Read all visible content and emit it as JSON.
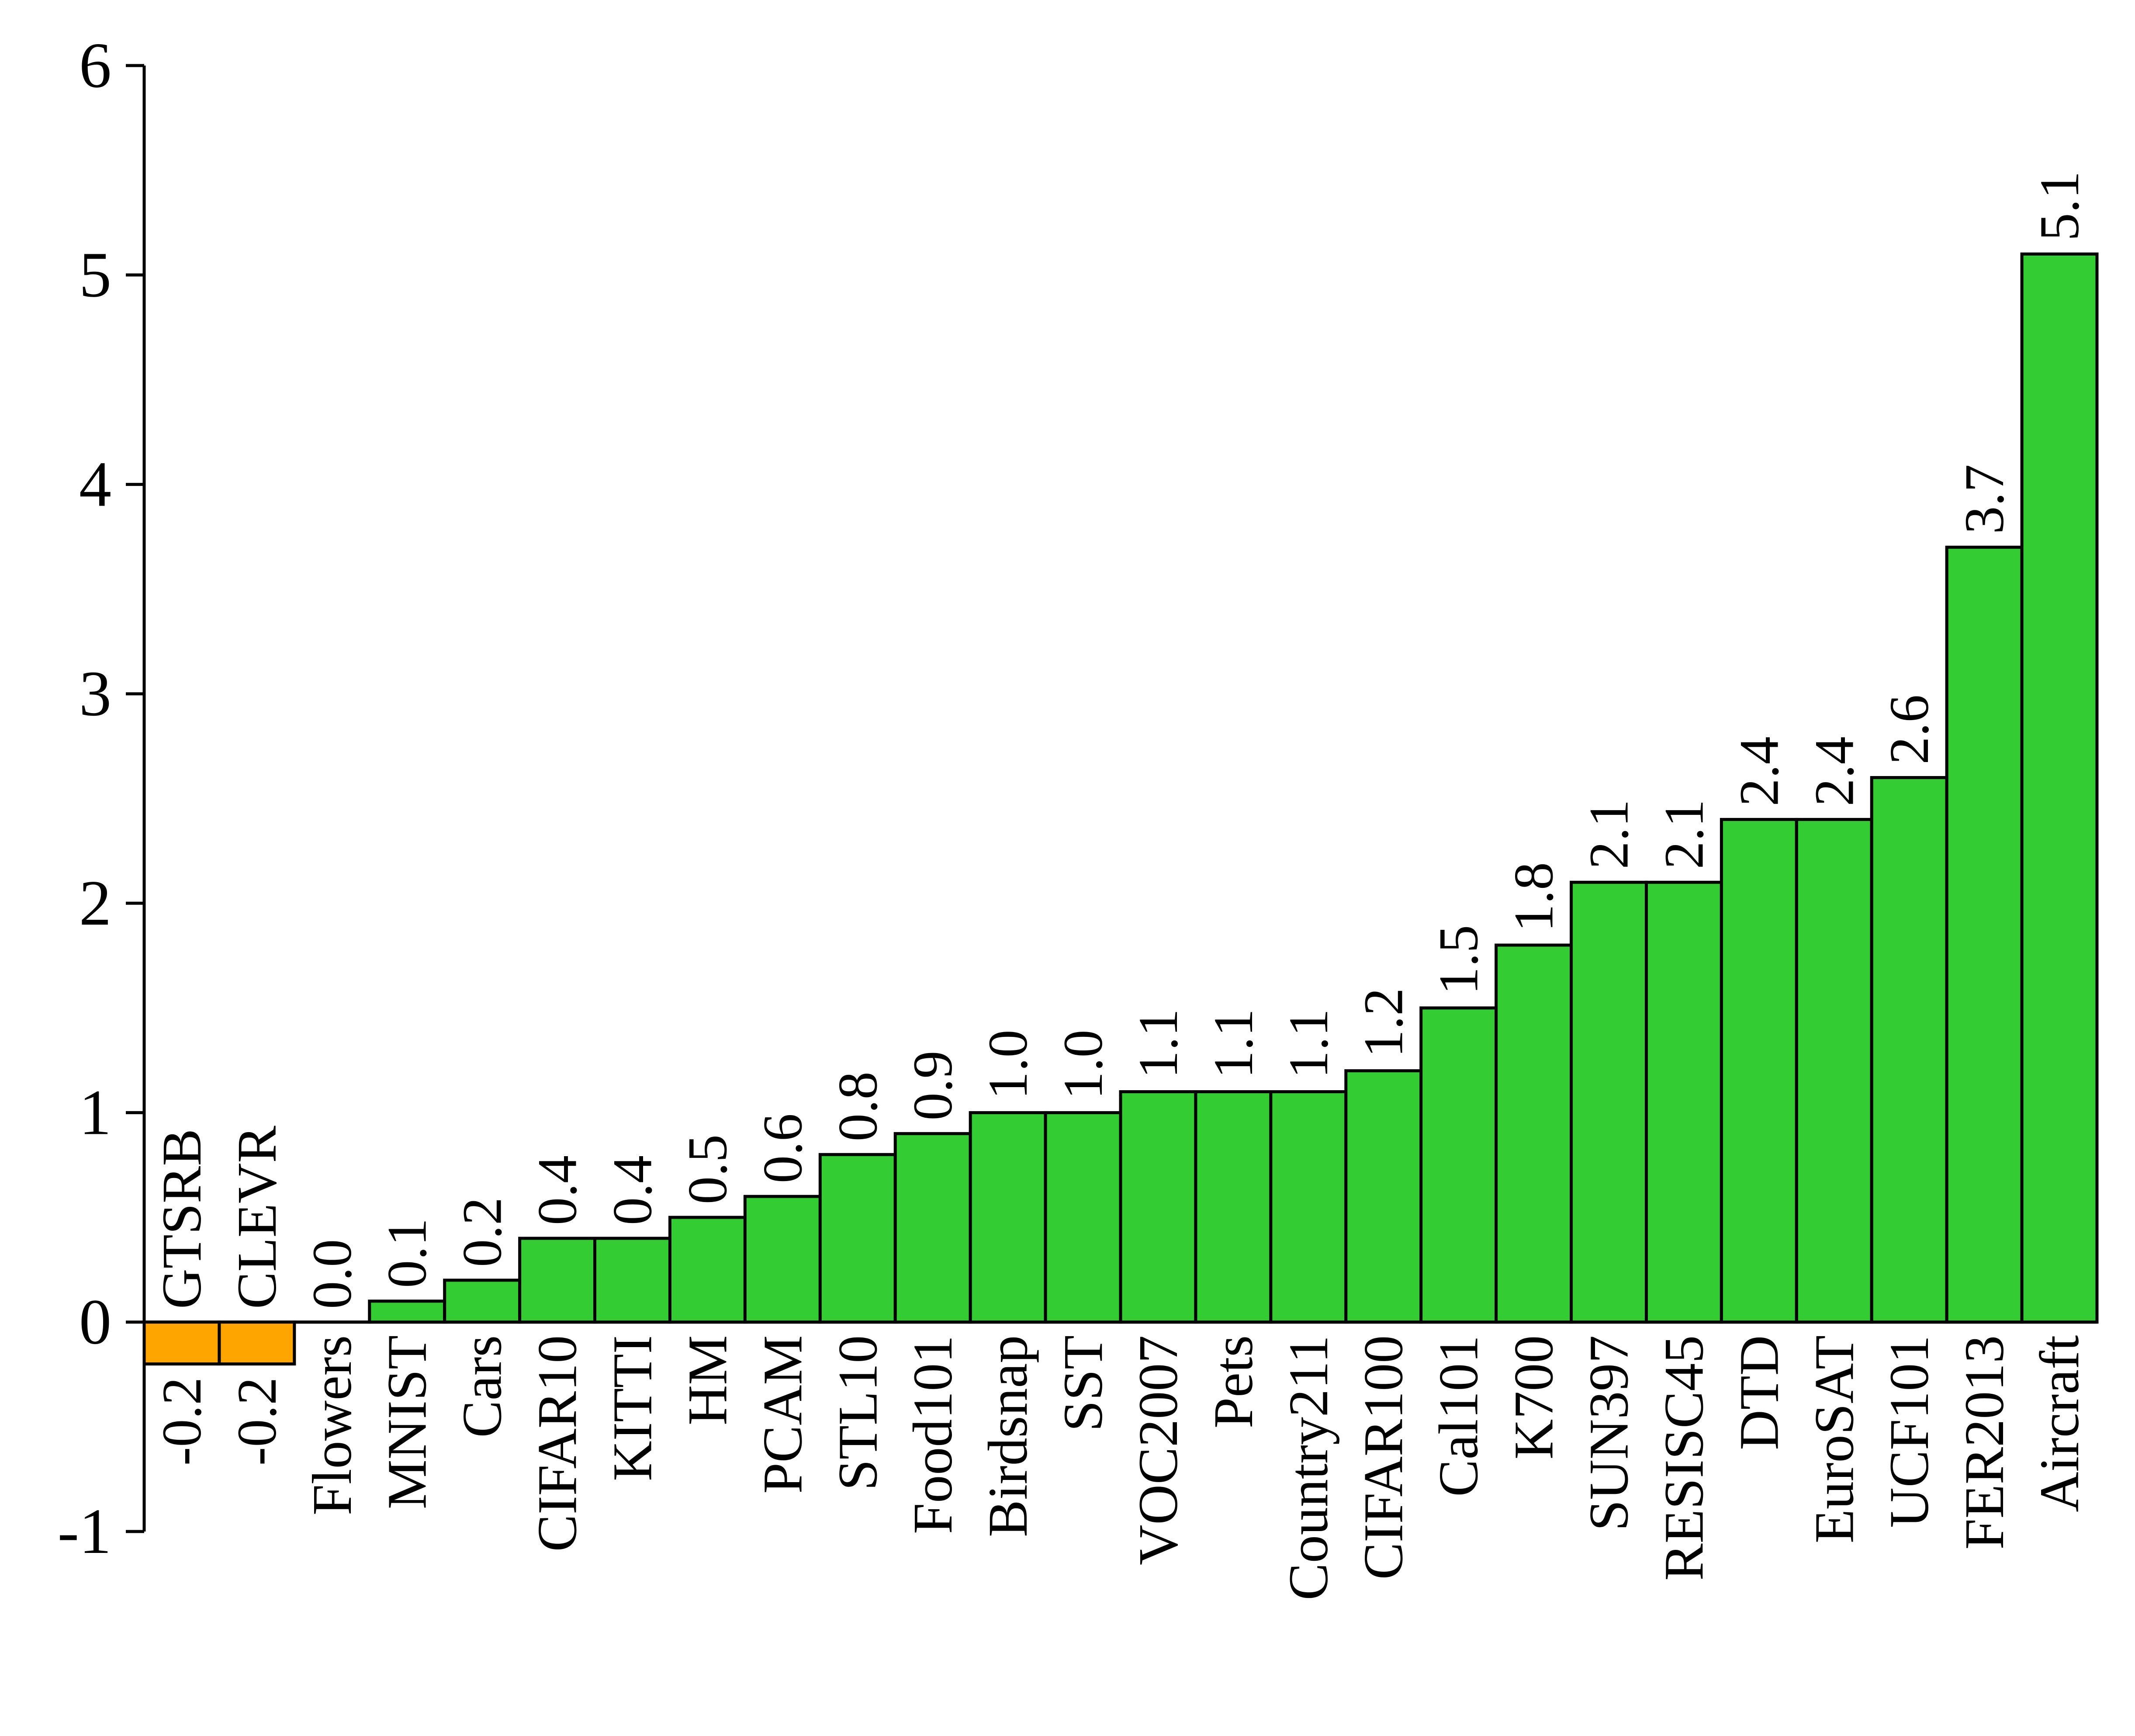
{
  "chart_data": {
    "type": "bar",
    "categories": [
      "GTSRB",
      "CLEVR",
      "Flowers",
      "MNIST",
      "Cars",
      "CIFAR10",
      "KITTI",
      "HM",
      "PCAM",
      "STL10",
      "Food101",
      "Birdsnap",
      "SST",
      "VOC2007",
      "Pets",
      "Country211",
      "CIFAR100",
      "Cal101",
      "K700",
      "SUN397",
      "RESISC45",
      "DTD",
      "EuroSAT",
      "UCF101",
      "FER2013",
      "Aircraft"
    ],
    "values": [
      -0.2,
      -0.2,
      0.0,
      0.1,
      0.2,
      0.4,
      0.4,
      0.5,
      0.6,
      0.8,
      0.9,
      1.0,
      1.0,
      1.1,
      1.1,
      1.1,
      1.2,
      1.5,
      1.8,
      2.1,
      2.1,
      2.4,
      2.4,
      2.6,
      3.7,
      5.1
    ],
    "value_labels": [
      "-0.2",
      "-0.2",
      "0.0",
      "0.1",
      "0.2",
      "0.4",
      "0.4",
      "0.5",
      "0.6",
      "0.8",
      "0.9",
      "1.0",
      "1.0",
      "1.1",
      "1.1",
      "1.1",
      "1.2",
      "1.5",
      "1.8",
      "2.1",
      "2.1",
      "2.4",
      "2.4",
      "2.6",
      "3.7",
      "5.1"
    ],
    "yticks": [
      -1,
      0,
      1,
      2,
      3,
      4,
      5,
      6
    ],
    "ytick_labels": [
      "-1",
      "0",
      "1",
      "2",
      "3",
      "4",
      "5",
      "6"
    ],
    "ylim": [
      -1,
      6
    ],
    "title": "",
    "xlabel": "",
    "ylabel": "",
    "grid": false,
    "colors": {
      "positive": "#33cc33",
      "negative": "#ffa500",
      "edge": "#000000"
    }
  }
}
